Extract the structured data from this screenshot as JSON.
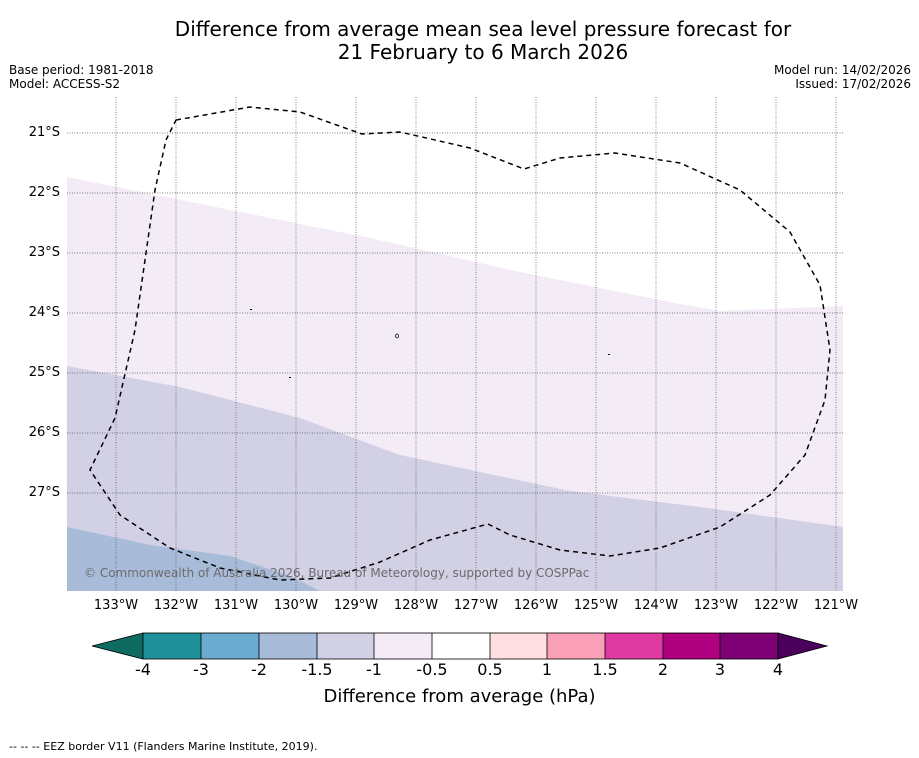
{
  "title": {
    "line1": "Difference from average mean sea level pressure forecast for",
    "line2": "21 February to 6 March 2026"
  },
  "meta_left": {
    "base_period": "Base period: 1981-2018",
    "model": "Model: ACCESS-S2"
  },
  "meta_right": {
    "model_run": "Model run: 14/02/2026",
    "issued": "Issued: 17/02/2026"
  },
  "map": {
    "lat_labels": [
      "21°S",
      "22°S",
      "23°S",
      "24°S",
      "25°S",
      "26°S",
      "27°S"
    ],
    "lon_labels": [
      "133°W",
      "132°W",
      "131°W",
      "130°W",
      "129°W",
      "128°W",
      "127°W",
      "126°W",
      "125°W",
      "124°W",
      "123°W",
      "122°W",
      "121°W"
    ],
    "copyright": "© Commonwealth of Australia 2026, Bureau of Meteorology, supported by COSPPac",
    "bands": [
      {
        "range": "-0.5 to 0.5",
        "color": "#ffffff"
      },
      {
        "range": "-1 to -0.5",
        "color": "#f3ecf6"
      },
      {
        "range": "-1.5 to -1",
        "color": "#d1d0e4"
      },
      {
        "range": "-2 to -1.5",
        "color": "#a8bbd9"
      }
    ],
    "eez_border_style": "dashed"
  },
  "colorbar": {
    "ticks": [
      "-4",
      "-3",
      "-2",
      "-1.5",
      "-1",
      "-0.5",
      "0.5",
      "1",
      "1.5",
      "2",
      "3",
      "4"
    ],
    "colors": [
      "#0e6b62",
      "#1e9198",
      "#6aabd2",
      "#a8bbd9",
      "#d1d0e4",
      "#f3ecf6",
      "#ffffff",
      "#ffdfe1",
      "#f9a0b8",
      "#de3a9f",
      "#b1007f",
      "#7d0074",
      "#4a005c"
    ],
    "title": "Difference from average (hPa)"
  },
  "footer": {
    "legend": "--  --  -- EEZ border V11 (Flanders Marine Institute, 2019)."
  }
}
